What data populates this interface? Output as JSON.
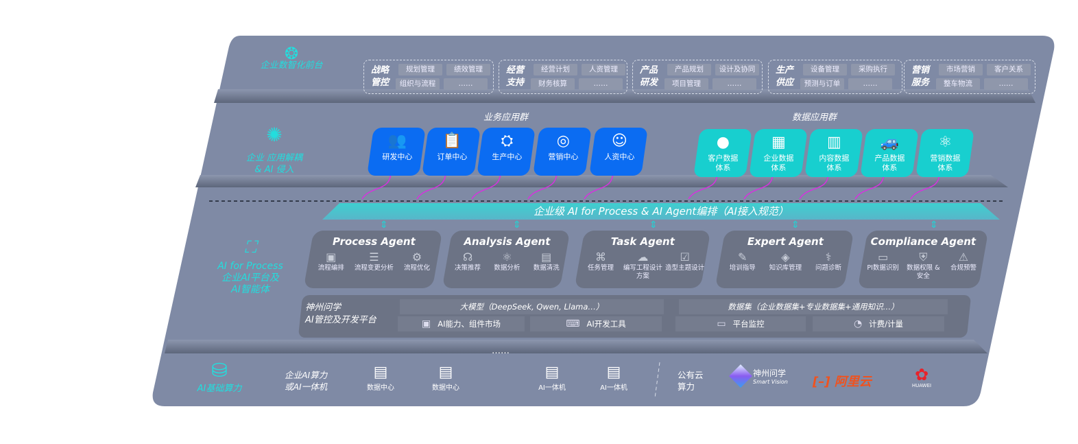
{
  "colors": {
    "slab": "#7f8aa5",
    "accent_cyan": "#22dede",
    "business_card": "#0b6cf2",
    "data_card": "#18cfcf",
    "agent_card": "#6c7385",
    "connector": "#d830e0"
  },
  "layers": {
    "front": {
      "label": "企业数智化前台",
      "icon": "brain-icon"
    },
    "apps": {
      "label_line1": "企业 应用解耦",
      "label_line2": "& AI 侵入",
      "icon": "molecule-hub-icon"
    },
    "ai": {
      "label_line1": "AI for Process",
      "label_line2": "企业AI平台及",
      "label_line3": "AI智能体",
      "icon": "face-scan-icon"
    },
    "infra": {
      "label": "AI基础算力",
      "icon": "database-icon"
    }
  },
  "front_groups": [
    {
      "title": "战略管控",
      "chips": [
        "规划管理",
        "绩效管理",
        "组织与流程",
        "……"
      ]
    },
    {
      "title": "经营支持",
      "chips": [
        "经营计划",
        "人资管理",
        "财务核算",
        "……"
      ]
    },
    {
      "title": "产品研发",
      "chips": [
        "产品规划",
        "设计及协同",
        "项目管理",
        "……"
      ]
    },
    {
      "title": "生产供应",
      "chips": [
        "设备管理",
        "采购执行",
        "预测与订单",
        "……"
      ]
    },
    {
      "title": "营销服务",
      "chips": [
        "市场营销",
        "客户关系",
        "整车物流",
        "……"
      ]
    }
  ],
  "business_apps": {
    "title": "业务应用群",
    "items": [
      {
        "label": "研发中心",
        "icon": "users-icon"
      },
      {
        "label": "订单中心",
        "icon": "clipboard-icon"
      },
      {
        "label": "生产中心",
        "icon": "factory-icon"
      },
      {
        "label": "营销中心",
        "icon": "target-icon"
      },
      {
        "label": "人资中心",
        "icon": "person-handshake-icon"
      }
    ]
  },
  "data_apps": {
    "title": "数据应用群",
    "items": [
      {
        "label": "客户数据体系",
        "icon": "person-icon"
      },
      {
        "label": "企业数据体系",
        "icon": "building-icon"
      },
      {
        "label": "内容数据体系",
        "icon": "books-icon"
      },
      {
        "label": "产品数据体系",
        "icon": "car-icon"
      },
      {
        "label": "营销数据体系",
        "icon": "atom-icon"
      }
    ]
  },
  "banner": "企业级 AI for Process & AI Agent编排（AI接入规范）",
  "agents": [
    {
      "name": "Process Agent",
      "items": [
        {
          "label": "流程编排",
          "icon": "chart-window-icon"
        },
        {
          "label": "流程变更分析",
          "icon": "list-settings-icon"
        },
        {
          "label": "流程优化",
          "icon": "optimize-icon"
        }
      ]
    },
    {
      "name": "Analysis Agent",
      "items": [
        {
          "label": "决策推荐",
          "icon": "head-idea-icon"
        },
        {
          "label": "数据分析",
          "icon": "atom-icon"
        },
        {
          "label": "数据清洗",
          "icon": "doc-clean-icon"
        }
      ]
    },
    {
      "name": "Task Agent",
      "items": [
        {
          "label": "任务管理",
          "icon": "network-icon"
        },
        {
          "label": "编写工程设计方案",
          "icon": "cloud-icon"
        },
        {
          "label": "造型主题设计",
          "icon": "checklist-icon"
        }
      ]
    },
    {
      "name": "Expert Agent",
      "items": [
        {
          "label": "培训指导",
          "icon": "teach-icon"
        },
        {
          "label": "知识库管理",
          "icon": "layers-icon"
        },
        {
          "label": "问题诊断",
          "icon": "diagnose-icon"
        }
      ]
    },
    {
      "name": "Compliance Agent",
      "items": [
        {
          "label": "PI数据识别",
          "icon": "id-card-icon"
        },
        {
          "label": "数据权限 & 安全",
          "icon": "shield-link-icon"
        },
        {
          "label": "合规预警",
          "icon": "alert-box-icon"
        }
      ]
    }
  ],
  "platform": {
    "title_line1": "神州问学",
    "title_line2": "AI管控及开发平台",
    "llm": "大模型（DeepSeek, Qwen, Llama…）",
    "dataset": "数据集（企业数据集+专业数据集+通用知识…）",
    "tools": [
      {
        "label": "AI能力、组件市场",
        "icon": "market-icon"
      },
      {
        "label": "AI开发工具",
        "icon": "dev-tool-icon"
      },
      {
        "label": "平台监控",
        "icon": "monitor-icon"
      },
      {
        "label": "计费/计量",
        "icon": "gauge-icon"
      }
    ]
  },
  "infra": {
    "enterprise_line1": "企业AI算力",
    "enterprise_line2": "或AI一体机",
    "servers": [
      {
        "label": "数据中心",
        "icon": "server-icon"
      },
      {
        "label": "数据中心",
        "icon": "server-icon"
      },
      {
        "label": "……",
        "icon": ""
      },
      {
        "label": "AI一体机",
        "icon": "server-icon"
      },
      {
        "label": "AI一体机",
        "icon": "server-icon"
      }
    ],
    "public_line1": "公有云",
    "public_line2": "算力",
    "vendors": [
      {
        "name": "神州问学",
        "sub": "Smart Vision"
      },
      {
        "name": "阿里云"
      },
      {
        "name": "HUAWEI"
      }
    ]
  }
}
